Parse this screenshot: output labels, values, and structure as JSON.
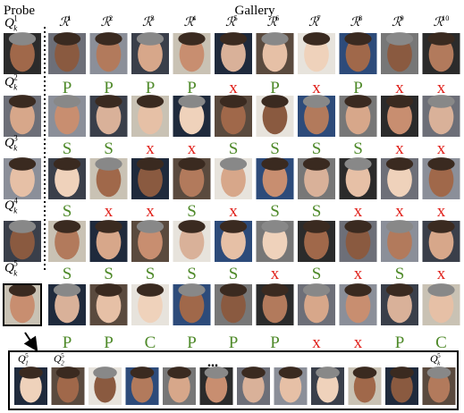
{
  "header": {
    "probe": "Probe",
    "gallery": "Gallery"
  },
  "columns": [
    {
      "base": "ℛ",
      "sup": "1"
    },
    {
      "base": "ℛ",
      "sup": "2"
    },
    {
      "base": "ℛ",
      "sup": "3"
    },
    {
      "base": "ℛ",
      "sup": "4"
    },
    {
      "base": "ℛ",
      "sup": "5"
    },
    {
      "base": "ℛ",
      "sup": "6"
    },
    {
      "base": "ℛ",
      "sup": "7"
    },
    {
      "base": "ℛ",
      "sup": "8"
    },
    {
      "base": "ℛ",
      "sup": "9"
    },
    {
      "base": "ℛ",
      "sup": "10"
    }
  ],
  "rows": [
    {
      "query": {
        "base": "Q",
        "sub": "k",
        "sup": "1"
      },
      "marks": [
        "P",
        "P",
        "P",
        "P",
        "x",
        "P",
        "x",
        "P",
        "x",
        "x"
      ]
    },
    {
      "query": {
        "base": "Q",
        "sub": "k",
        "sup": "2"
      },
      "marks": [
        "S",
        "S",
        "x",
        "x",
        "S",
        "S",
        "S",
        "S",
        "x",
        "x"
      ]
    },
    {
      "query": {
        "base": "Q",
        "sub": "k",
        "sup": "3"
      },
      "marks": [
        "S",
        "x",
        "x",
        "S",
        "x",
        "S",
        "S",
        "x",
        "x",
        "x"
      ]
    },
    {
      "query": {
        "base": "Q",
        "sub": "k",
        "sup": "4"
      },
      "marks": [
        "S",
        "S",
        "S",
        "S",
        "S",
        "x",
        "S",
        "x",
        "S",
        "x"
      ]
    },
    {
      "query": {
        "base": "Q",
        "sub": "k",
        "sup": "5"
      },
      "marks": [
        "P",
        "P",
        "C",
        "P",
        "P",
        "P",
        "x",
        "x",
        "P",
        "C"
      ]
    }
  ],
  "strip": {
    "first": {
      "base": "Q",
      "sub": "1",
      "sup": "5"
    },
    "second": {
      "base": "Q",
      "sub": "2",
      "sup": "5"
    },
    "ellipsis": "...",
    "last": {
      "base": "Q",
      "sub": "k",
      "sup": "5"
    }
  }
}
